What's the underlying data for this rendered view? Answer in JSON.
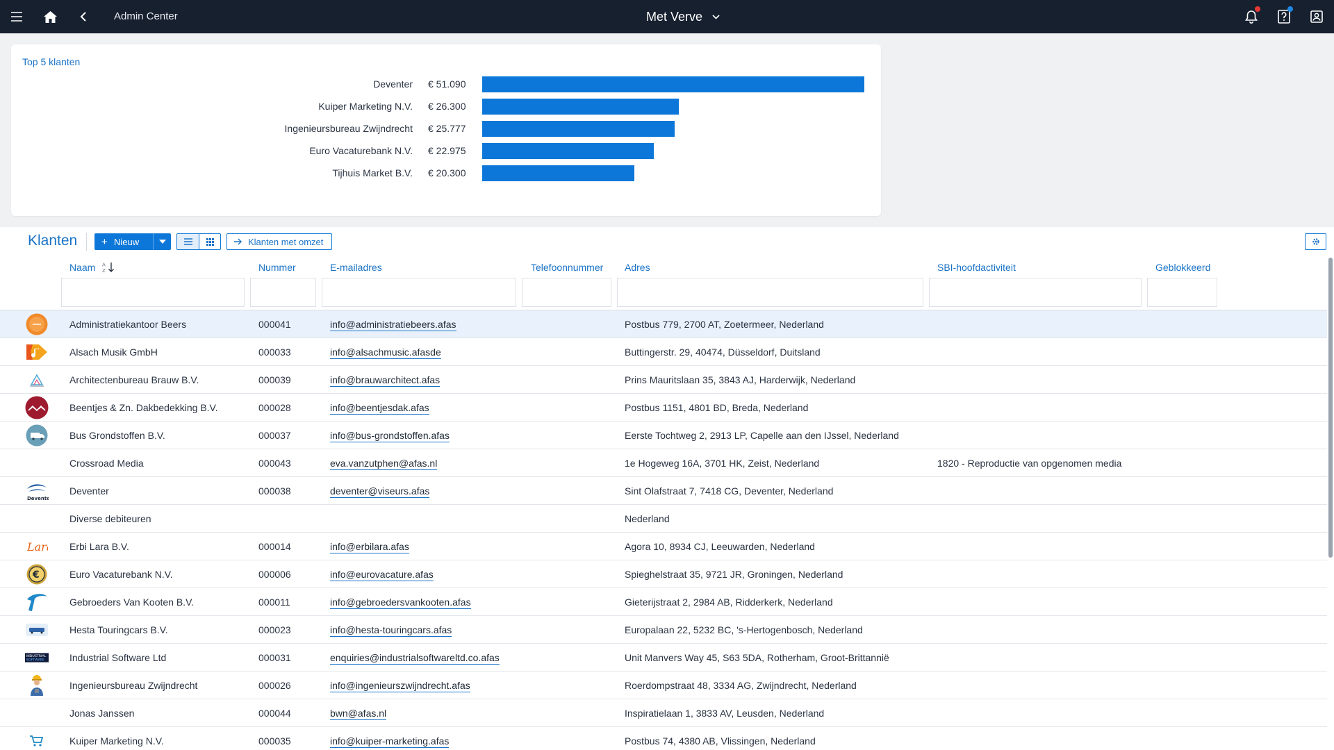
{
  "topbar": {
    "title": "Admin Center",
    "environment": "Met Verve",
    "icons": [
      "menu-icon",
      "home-icon",
      "back-icon",
      "bell-icon",
      "help-icon",
      "profile-icon"
    ],
    "notification_dot_color": "#e53935",
    "help_dot_color": "#1e88e5"
  },
  "top_card": {
    "title": "Top 5 klanten",
    "chart_data": {
      "type": "bar",
      "orientation": "horizontal",
      "categories": [
        "Deventer",
        "Kuiper Marketing N.V.",
        "Ingenieursbureau Zwijndrecht",
        "Euro Vacaturebank N.V.",
        "Tijhuis Market B.V."
      ],
      "values": [
        51090,
        26300,
        25777,
        22975,
        20300
      ],
      "value_labels": [
        "€ 51.090",
        "€ 26.300",
        "€ 25.777",
        "€ 22.975",
        "€ 20.300"
      ],
      "bar_color": "#0c77d8"
    }
  },
  "list": {
    "title": "Klanten",
    "new_button": "Nieuw",
    "link_button": "Klanten met omzet",
    "columns": [
      "Naam",
      "Nummer",
      "E-mailadres",
      "Telefoonnummer",
      "Adres",
      "SBI-hoofdactiviteit",
      "Geblokkeerd"
    ],
    "rows": [
      {
        "naam": "Administratiekantoor Beers",
        "nummer": "000041",
        "email": "info@administratiebeers.afas",
        "telefoon": "",
        "adres": "Postbus 779, 2700 AT, Zoetermeer, Nederland",
        "sbi": "",
        "logo": "orange-circle-logo"
      },
      {
        "naam": "Alsach Musik GmbH",
        "nummer": "000033",
        "email": "info@alsachmusic.afasde",
        "telefoon": "",
        "adres": "Buttingerstr. 29, 40474, Düsseldorf, Duitsland",
        "sbi": "",
        "logo": "music-note-logo"
      },
      {
        "naam": "Architectenbureau Brauw B.V.",
        "nummer": "000039",
        "email": "info@brauwarchitect.afas",
        "telefoon": "",
        "adres": "Prins Mauritslaan 35, 3843 AJ, Harderwijk, Nederland",
        "sbi": "",
        "logo": "building-logo"
      },
      {
        "naam": "Beentjes & Zn. Dakbedekking B.V.",
        "nummer": "000028",
        "email": "info@beentjesdak.afas",
        "telefoon": "",
        "adres": "Postbus 1151, 4801 BD, Breda, Nederland",
        "sbi": "",
        "logo": "roof-logo"
      },
      {
        "naam": "Bus Grondstoffen B.V.",
        "nummer": "000037",
        "email": "info@bus-grondstoffen.afas",
        "telefoon": "",
        "adres": "Eerste Tochtweg 2, 2913 LP, Capelle aan den IJssel, Nederland",
        "sbi": "",
        "logo": "truck-logo"
      },
      {
        "naam": "Crossroad Media",
        "nummer": "000043",
        "email": "eva.vanzutphen@afas.nl",
        "telefoon": "",
        "adres": "1e Hogeweg 16A, 3701 HK, Zeist, Nederland",
        "sbi": "1820 - Reproductie van opgenomen media",
        "logo": ""
      },
      {
        "naam": "Deventer",
        "nummer": "000038",
        "email": "deventer@viseurs.afas",
        "telefoon": "",
        "adres": "Sint Olafstraat 7, 7418 CG, Deventer, Nederland",
        "sbi": "",
        "logo": "deventer-logo"
      },
      {
        "naam": "Diverse debiteuren",
        "nummer": "",
        "email": "",
        "telefoon": "",
        "adres": "Nederland",
        "sbi": "",
        "logo": ""
      },
      {
        "naam": "Erbi Lara B.V.",
        "nummer": "000014",
        "email": "info@erbilara.afas",
        "telefoon": "",
        "adres": "Agora 10, 8934 CJ, Leeuwarden, Nederland",
        "sbi": "",
        "logo": "lara-logo"
      },
      {
        "naam": "Euro Vacaturebank N.V.",
        "nummer": "000006",
        "email": "info@eurovacature.afas",
        "telefoon": "",
        "adres": "Spieghelstraat 35, 9721 JR, Groningen, Nederland",
        "sbi": "",
        "logo": "euro-coin-logo"
      },
      {
        "naam": "Gebroeders Van Kooten B.V.",
        "nummer": "000011",
        "email": "info@gebroedersvankooten.afas",
        "telefoon": "",
        "adres": "Gieterijstraat 2, 2984 AB, Ridderkerk, Nederland",
        "sbi": "",
        "logo": "swoosh-logo"
      },
      {
        "naam": "Hesta Touringcars B.V.",
        "nummer": "000023",
        "email": "info@hesta-touringcars.afas",
        "telefoon": "",
        "adres": "Europalaan 22, 5232 BC, 's-Hertogenbosch, Nederland",
        "sbi": "",
        "logo": "bus-logo"
      },
      {
        "naam": "Industrial Software Ltd",
        "nummer": "000031",
        "email": "enquiries@industrialsoftwareltd.co.afas",
        "telefoon": "",
        "adres": "Unit Manvers Way 45, S63 5DA, Rotherham, Groot-Brittannië",
        "sbi": "",
        "logo": "industrial-logo"
      },
      {
        "naam": "Ingenieursbureau Zwijndrecht",
        "nummer": "000026",
        "email": "info@ingenieurszwijndrecht.afas",
        "telefoon": "",
        "adres": "Roerdompstraat 48, 3334 AG, Zwijndrecht, Nederland",
        "sbi": "",
        "logo": "engineer-logo"
      },
      {
        "naam": "Jonas Janssen",
        "nummer": "000044",
        "email": "bwn@afas.nl",
        "telefoon": "",
        "adres": "Inspiratielaan 1, 3833 AV, Leusden, Nederland",
        "sbi": "",
        "logo": ""
      },
      {
        "naam": "Kuiper Marketing N.V.",
        "nummer": "000035",
        "email": "info@kuiper-marketing.afas",
        "telefoon": "",
        "adres": "Postbus 74, 4380 AB, Vlissingen, Nederland",
        "sbi": "",
        "logo": "cart-logo"
      }
    ]
  },
  "accent_color": "#1a73c7",
  "selected_row_color": "#e9f2fc"
}
